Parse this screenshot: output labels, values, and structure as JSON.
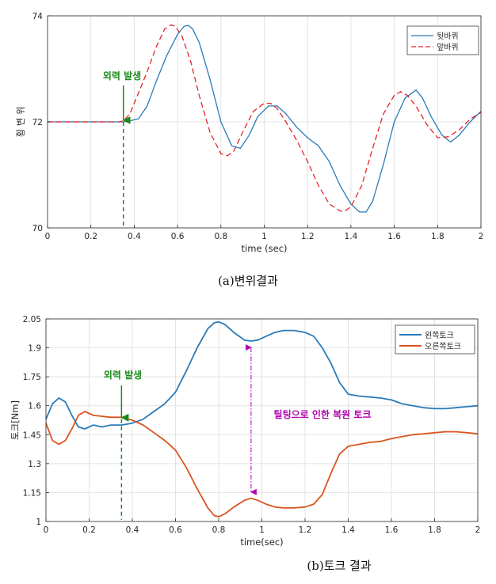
{
  "chart_data": [
    {
      "type": "line",
      "caption": "(a)변위결과",
      "xlabel": "time (sec)",
      "ylabel": "횡 변 위",
      "xlim": [
        0,
        2
      ],
      "ylim": [
        70,
        74
      ],
      "xticks": [
        0,
        0.2,
        0.4,
        0.6,
        0.8,
        1,
        1.2,
        1.4,
        1.6,
        1.8,
        2
      ],
      "yticks": [
        70,
        72,
        74
      ],
      "grid": true,
      "legend_position": "top-right",
      "series": [
        {
          "name": "뒷바퀴",
          "color": "#2a7ab8",
          "style": "solid",
          "x": [
            0,
            0.3,
            0.35,
            0.38,
            0.42,
            0.46,
            0.5,
            0.55,
            0.6,
            0.63,
            0.65,
            0.67,
            0.7,
            0.75,
            0.8,
            0.85,
            0.89,
            0.93,
            0.97,
            1.02,
            1.06,
            1.1,
            1.15,
            1.2,
            1.25,
            1.3,
            1.35,
            1.4,
            1.44,
            1.47,
            1.5,
            1.55,
            1.6,
            1.65,
            1.7,
            1.73,
            1.77,
            1.82,
            1.86,
            1.9,
            1.95,
            2.0
          ],
          "y": [
            72.0,
            72.0,
            72.0,
            72.02,
            72.06,
            72.3,
            72.75,
            73.25,
            73.65,
            73.8,
            73.82,
            73.75,
            73.5,
            72.8,
            72.0,
            71.55,
            71.5,
            71.75,
            72.1,
            72.3,
            72.3,
            72.15,
            71.9,
            71.7,
            71.55,
            71.25,
            70.8,
            70.45,
            70.3,
            70.3,
            70.5,
            71.2,
            72.0,
            72.45,
            72.6,
            72.45,
            72.1,
            71.75,
            71.62,
            71.75,
            72.0,
            72.2
          ]
        },
        {
          "name": "앞바퀴",
          "color": "#e8232b",
          "style": "dashed",
          "x": [
            0,
            0.33,
            0.35,
            0.38,
            0.42,
            0.46,
            0.5,
            0.54,
            0.57,
            0.59,
            0.62,
            0.66,
            0.7,
            0.75,
            0.8,
            0.83,
            0.86,
            0.9,
            0.95,
            1.0,
            1.03,
            1.06,
            1.1,
            1.15,
            1.2,
            1.25,
            1.3,
            1.35,
            1.37,
            1.4,
            1.45,
            1.5,
            1.55,
            1.6,
            1.63,
            1.66,
            1.7,
            1.75,
            1.8,
            1.85,
            1.9,
            1.95,
            2.0
          ],
          "y": [
            72.0,
            72.0,
            72.02,
            72.15,
            72.55,
            72.95,
            73.4,
            73.75,
            73.83,
            73.8,
            73.62,
            73.15,
            72.5,
            71.8,
            71.4,
            71.36,
            71.45,
            71.8,
            72.2,
            72.35,
            72.35,
            72.25,
            72.0,
            71.65,
            71.25,
            70.8,
            70.45,
            70.32,
            70.31,
            70.4,
            70.8,
            71.5,
            72.15,
            72.5,
            72.57,
            72.5,
            72.3,
            71.95,
            71.7,
            71.72,
            71.85,
            72.05,
            72.18
          ]
        }
      ],
      "annotation": {
        "text": "외력 발생",
        "x": 0.35,
        "arrow_to_y": 72.0,
        "color": "#1a8a1a"
      }
    },
    {
      "type": "line",
      "caption": "(b)토크 결과",
      "xlabel": "time(sec)",
      "ylabel": "토크[Nm]",
      "xlim": [
        0,
        2
      ],
      "ylim": [
        1,
        2.05
      ],
      "xticks": [
        0,
        0.2,
        0.4,
        0.6,
        0.8,
        1,
        1.2,
        1.4,
        1.6,
        1.8,
        2
      ],
      "yticks": [
        1,
        1.15,
        1.3,
        1.45,
        1.6,
        1.75,
        1.9,
        2.05
      ],
      "grid": true,
      "legend_position": "top-right",
      "series": [
        {
          "name": "왼쪽토크",
          "color": "#2a7ab8",
          "style": "solid",
          "x": [
            0,
            0.03,
            0.06,
            0.09,
            0.12,
            0.15,
            0.18,
            0.22,
            0.26,
            0.3,
            0.35,
            0.4,
            0.45,
            0.5,
            0.55,
            0.6,
            0.65,
            0.7,
            0.75,
            0.78,
            0.8,
            0.83,
            0.87,
            0.92,
            0.95,
            0.98,
            1.02,
            1.06,
            1.1,
            1.15,
            1.2,
            1.24,
            1.28,
            1.32,
            1.36,
            1.4,
            1.45,
            1.5,
            1.55,
            1.6,
            1.65,
            1.7,
            1.75,
            1.8,
            1.85,
            1.9,
            1.95,
            2.0
          ],
          "y": [
            1.53,
            1.61,
            1.64,
            1.62,
            1.55,
            1.49,
            1.48,
            1.5,
            1.49,
            1.5,
            1.5,
            1.51,
            1.53,
            1.57,
            1.61,
            1.67,
            1.78,
            1.9,
            2.0,
            2.03,
            2.035,
            2.02,
            1.98,
            1.94,
            1.935,
            1.94,
            1.96,
            1.98,
            1.99,
            1.99,
            1.98,
            1.96,
            1.9,
            1.82,
            1.72,
            1.66,
            1.65,
            1.645,
            1.64,
            1.63,
            1.61,
            1.6,
            1.59,
            1.585,
            1.585,
            1.59,
            1.595,
            1.6
          ]
        },
        {
          "name": "오른쪽토크",
          "color": "#d9541e",
          "style": "solid",
          "x": [
            0,
            0.03,
            0.06,
            0.09,
            0.12,
            0.15,
            0.18,
            0.22,
            0.26,
            0.3,
            0.35,
            0.4,
            0.45,
            0.5,
            0.55,
            0.6,
            0.65,
            0.7,
            0.75,
            0.78,
            0.8,
            0.83,
            0.87,
            0.92,
            0.95,
            0.98,
            1.02,
            1.06,
            1.1,
            1.15,
            1.2,
            1.24,
            1.28,
            1.32,
            1.36,
            1.4,
            1.45,
            1.5,
            1.55,
            1.6,
            1.65,
            1.7,
            1.75,
            1.8,
            1.85,
            1.9,
            1.95,
            2.0
          ],
          "y": [
            1.51,
            1.42,
            1.4,
            1.42,
            1.48,
            1.55,
            1.57,
            1.55,
            1.545,
            1.54,
            1.54,
            1.525,
            1.5,
            1.46,
            1.42,
            1.37,
            1.28,
            1.17,
            1.07,
            1.03,
            1.025,
            1.04,
            1.075,
            1.11,
            1.12,
            1.11,
            1.09,
            1.075,
            1.07,
            1.07,
            1.075,
            1.09,
            1.14,
            1.25,
            1.35,
            1.39,
            1.4,
            1.41,
            1.415,
            1.43,
            1.44,
            1.45,
            1.455,
            1.46,
            1.465,
            1.465,
            1.46,
            1.455
          ]
        }
      ],
      "annotations": [
        {
          "text": "외력 발생",
          "x": 0.35,
          "arrow_to_y": 1.53,
          "color": "#1a8a1a"
        },
        {
          "text": "틸팅으로 인한 복원 토크",
          "x": 0.95,
          "from_y": 1.935,
          "to_y": 1.12,
          "color": "#b000b0"
        }
      ]
    }
  ]
}
